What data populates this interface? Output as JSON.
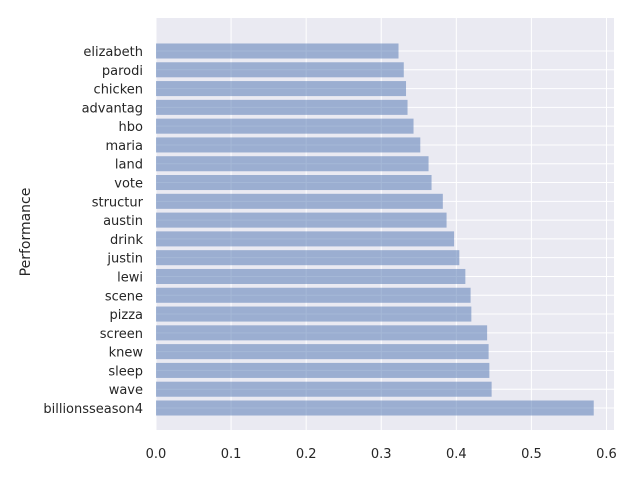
{
  "chart_data": {
    "type": "bar",
    "orientation": "horizontal",
    "title": "",
    "xlabel": "",
    "ylabel": "Performance",
    "categories": [
      "billionsseason4",
      "wave",
      "sleep",
      "knew",
      "screen",
      "pizza",
      "scene",
      "lewi",
      "justin",
      "drink",
      "austin",
      "structur",
      "vote",
      "land",
      "maria",
      "hbo",
      "advantag",
      "chicken",
      "parodi",
      "elizabeth"
    ],
    "values": [
      0.583,
      0.447,
      0.444,
      0.443,
      0.441,
      0.42,
      0.419,
      0.412,
      0.404,
      0.397,
      0.387,
      0.382,
      0.367,
      0.363,
      0.352,
      0.343,
      0.335,
      0.333,
      0.33,
      0.323
    ],
    "xlim": [
      0,
      0.61
    ],
    "xticks": [
      "0.0",
      "0.1",
      "0.2",
      "0.3",
      "0.4",
      "0.5",
      "0.6"
    ],
    "xtick_values": [
      0,
      0.1,
      0.2,
      0.3,
      0.4,
      0.5,
      0.6
    ],
    "grid": true,
    "legend": "none",
    "colors": {
      "bar": "#4c72b0",
      "background": "#eaeaf2",
      "grid": "#ffffff",
      "text": "#262626"
    }
  }
}
